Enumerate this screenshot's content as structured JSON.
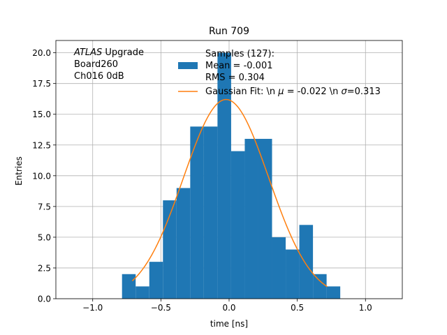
{
  "chart_data": {
    "type": "bar",
    "title": "Run 709",
    "xlabel": "time [ns]",
    "ylabel": "Entries",
    "xlim": [
      -1.27,
      1.27
    ],
    "ylim": [
      0,
      21
    ],
    "xticks": [
      -1.0,
      -0.5,
      0.0,
      0.5,
      1.0
    ],
    "xtick_labels": [
      "−1.0",
      "−0.5",
      "0.0",
      "0.5",
      "1.0"
    ],
    "yticks": [
      0,
      2.5,
      5,
      7.5,
      10,
      12.5,
      15,
      17.5,
      20
    ],
    "ytick_labels": [
      "0.0",
      "2.5",
      "5.0",
      "7.5",
      "10.0",
      "12.5",
      "15.0",
      "17.5",
      "20.0"
    ],
    "grid": true,
    "histogram": {
      "bin_edges": [
        -0.785,
        -0.685,
        -0.585,
        -0.485,
        -0.385,
        -0.285,
        -0.185,
        -0.085,
        0.015,
        0.115,
        0.215,
        0.315,
        0.415,
        0.515,
        0.615,
        0.715,
        0.815
      ],
      "counts": [
        2,
        1,
        3,
        8,
        9,
        14,
        14,
        20,
        12,
        13,
        13,
        5,
        4,
        6,
        2,
        1
      ],
      "color": "#1f77b4"
    },
    "fit": {
      "type": "gaussian",
      "amplitude": 16.2,
      "mu": -0.022,
      "sigma": 0.313,
      "x_range": [
        -0.71,
        0.72
      ],
      "color": "#ff7f0e"
    },
    "annotation": {
      "lines": [
        {
          "italic": "ATLAS",
          "text": " Upgrade"
        },
        {
          "italic": "",
          "text": " Board260"
        },
        {
          "italic": "",
          "text": " Ch016 0dB"
        }
      ]
    },
    "legend": {
      "placement": "top-right",
      "entries": [
        {
          "kind": "patch",
          "lines": [
            "Samples (127):",
            " Mean = -0.001",
            " RMS = 0.304"
          ]
        },
        {
          "kind": "line",
          "prefix": "Gaussian Fit: \\n ",
          "mu_symbol": "μ",
          "mu_text": " = -0.022 \\n ",
          "sigma_symbol": "σ",
          "sigma_text": "=0.313"
        }
      ]
    }
  }
}
